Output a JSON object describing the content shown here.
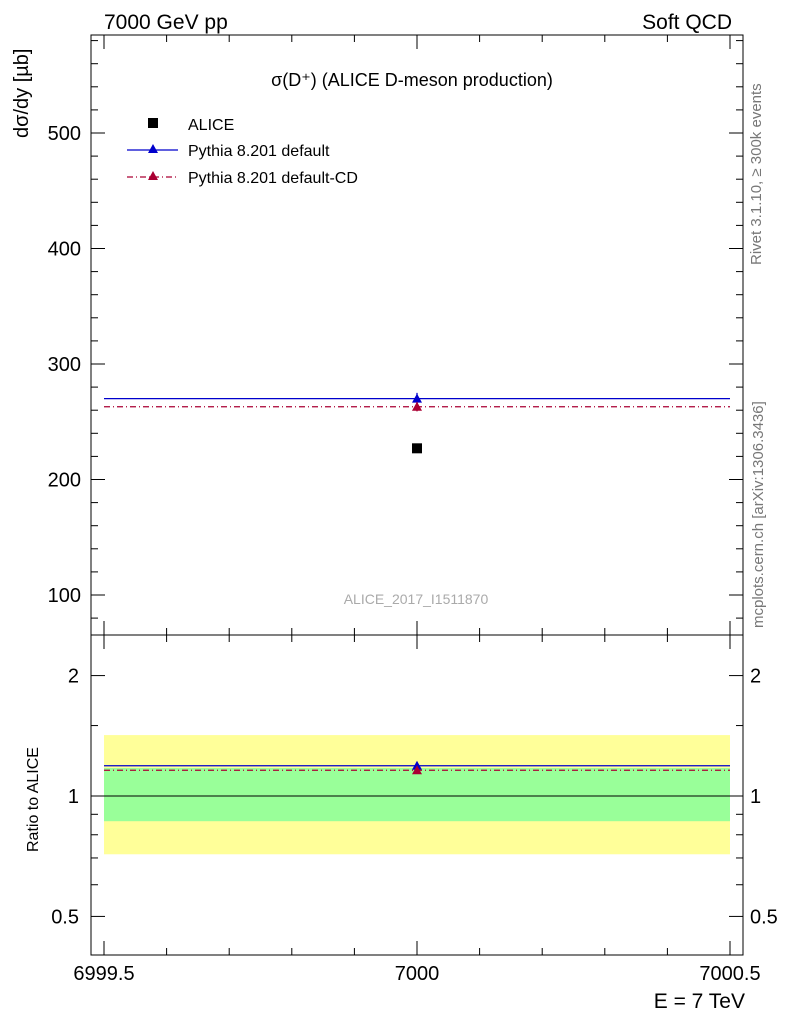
{
  "header": {
    "left": "7000 GeV pp",
    "right": "Soft QCD"
  },
  "side_text": {
    "rivet": "Rivet 3.1.10, ≥ 300k events",
    "mcplots": "mcplots.cern.ch [arXiv:1306.3436]"
  },
  "plot_title": "σ(D⁺) (ALICE D-meson production)",
  "ylabel_main": "dσ/dy [µb]",
  "ylabel_ratio": "Ratio to ALICE",
  "xlabel": "E = 7 TeV",
  "watermark": "ALICE_2017_I1511870",
  "chart_data": [
    {
      "type": "line",
      "panel": "main",
      "xlim": [
        6999.5,
        7000.5
      ],
      "ylim": [
        70,
        585
      ],
      "x_ticks": [
        6999.5,
        7000,
        7000.5
      ],
      "x_tick_labels": [
        "6999.5",
        "7000",
        "7000.5"
      ],
      "y_ticks": [
        100,
        200,
        300,
        400,
        500
      ],
      "y_tick_labels": [
        "100",
        "200",
        "300",
        "400",
        "500"
      ],
      "series": [
        {
          "name": "ALICE",
          "marker": "square",
          "color": "#000000",
          "x": [
            7000
          ],
          "y": [
            227
          ],
          "yerr": [
            0
          ]
        },
        {
          "name": "Pythia 8.201 default",
          "marker": "triangle",
          "line": "solid",
          "color": "#0000cc",
          "x": [
            7000
          ],
          "y": [
            270
          ],
          "yerr": [
            5
          ],
          "xrange": [
            6999.5,
            7000.5
          ]
        },
        {
          "name": "Pythia 8.201 default-CD",
          "marker": "triangle",
          "line": "dashdot",
          "color": "#aa0033",
          "x": [
            7000
          ],
          "y": [
            263
          ],
          "yerr": [
            4
          ],
          "xrange": [
            6999.5,
            7000.5
          ]
        }
      ]
    },
    {
      "type": "line",
      "panel": "ratio",
      "xlim": [
        6999.5,
        7000.5
      ],
      "ylim": [
        0.42,
        2.45
      ],
      "log_y": true,
      "y_ticks": [
        0.5,
        1,
        2
      ],
      "y_tick_labels": [
        "0.5",
        "1",
        "2"
      ],
      "bands": [
        {
          "name": "outer",
          "low": 0.715,
          "high": 1.42,
          "color": "#ffff99"
        },
        {
          "name": "inner",
          "low": 0.865,
          "high": 1.175,
          "color": "#99ff99"
        }
      ],
      "reference": 1,
      "series": [
        {
          "name": "Pythia 8.201 default",
          "color": "#0000cc",
          "line": "solid",
          "x": [
            7000
          ],
          "y": [
            1.19
          ]
        },
        {
          "name": "Pythia 8.201 default-CD",
          "color": "#aa0033",
          "line": "dashdot",
          "x": [
            7000
          ],
          "y": [
            1.16
          ]
        }
      ]
    }
  ]
}
